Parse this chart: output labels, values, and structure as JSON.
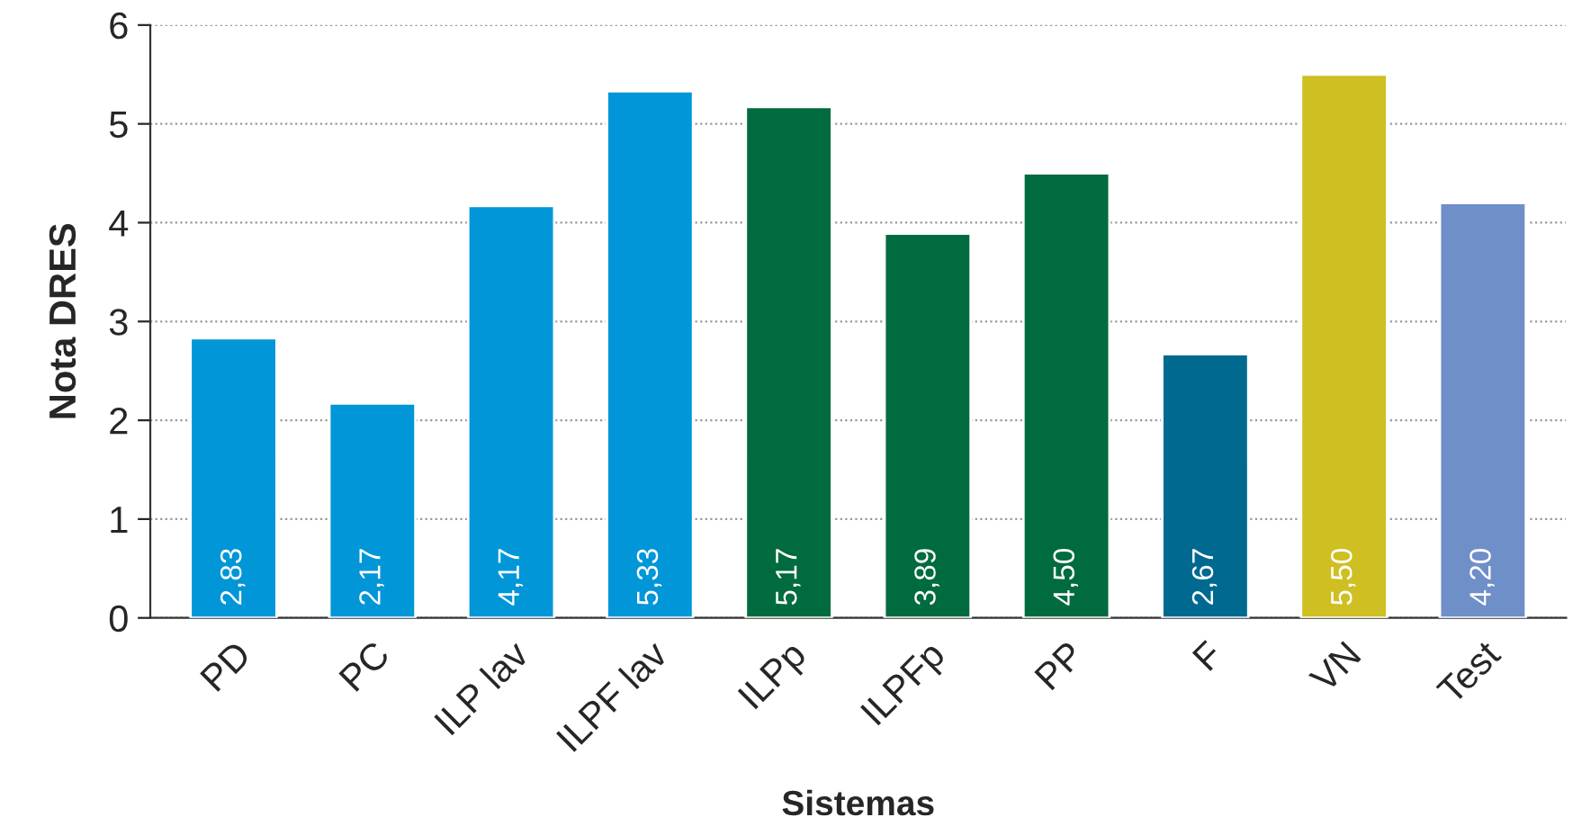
{
  "chart_data": {
    "type": "bar",
    "xlabel": "Sistemas",
    "ylabel": "Nota DRES",
    "categories": [
      "PD",
      "PC",
      "ILP lav",
      "ILPF lav",
      "ILPp",
      "ILPFp",
      "PP",
      "F",
      "VN",
      "Test"
    ],
    "values": [
      2.83,
      2.17,
      4.17,
      5.33,
      5.17,
      3.89,
      4.5,
      2.67,
      5.5,
      4.2
    ],
    "colors": [
      "#0096d8",
      "#0096d8",
      "#0096d8",
      "#0096d8",
      "#006b3e",
      "#006b3e",
      "#006b3e",
      "#006990",
      "#cfbf22",
      "#6f8fc8"
    ],
    "value_labels": [
      "2,83",
      "2,17",
      "4,17",
      "5,33",
      "5,17",
      "3,89",
      "4,50",
      "2,67",
      "5,50",
      "4,20"
    ],
    "ylim": [
      0,
      6
    ],
    "yticks": [
      0,
      1,
      2,
      3,
      4,
      5,
      6
    ],
    "grid": "y"
  }
}
